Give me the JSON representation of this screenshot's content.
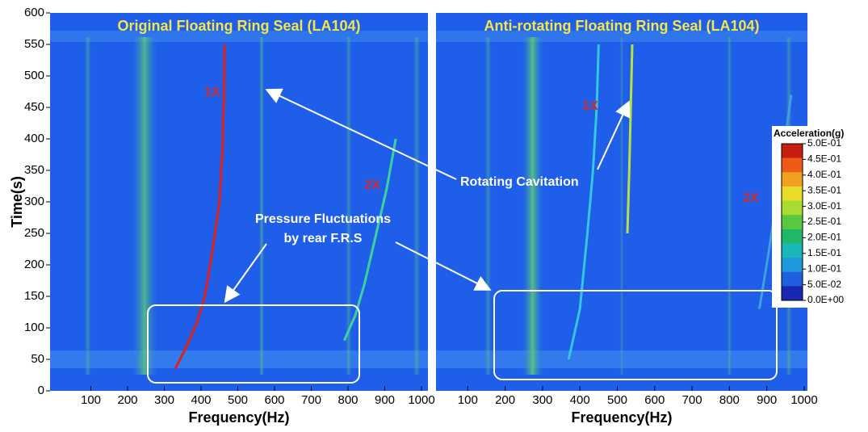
{
  "chart_data": [
    {
      "type": "spectrogram",
      "title": "Original Floating Ring Seal (LA104)",
      "x_label": "Frequency(Hz)",
      "y_label": "Time(s)",
      "xlim": [
        0,
        1000
      ],
      "xticks": [
        100,
        200,
        300,
        400,
        500,
        600,
        700,
        800,
        900,
        1000
      ],
      "ylim": [
        0,
        600
      ],
      "yticks": [
        0,
        50,
        100,
        150,
        200,
        250,
        300,
        350,
        400,
        450,
        500,
        550,
        600
      ],
      "series": [
        {
          "name": "1X",
          "color": "#e0201a",
          "x": [
            330,
            360,
            390,
            410,
            425,
            438,
            450,
            458,
            462,
            464
          ],
          "values": [
            35,
            70,
            110,
            150,
            200,
            250,
            300,
            380,
            460,
            550
          ]
        },
        {
          "name": "2X",
          "color": "#3fd0a0",
          "x": [
            790,
            820,
            845,
            865,
            885,
            905,
            930
          ],
          "values": [
            80,
            120,
            170,
            220,
            270,
            320,
            400
          ]
        }
      ],
      "annotations": [
        "Pressure Fluctuations",
        "by rear F.R.S"
      ]
    },
    {
      "type": "spectrogram",
      "title": "Anti-rotating Floating Ring Seal (LA104)",
      "x_label": "Frequency(Hz)",
      "xlim": [
        0,
        1000
      ],
      "xticks": [
        100,
        200,
        300,
        400,
        500,
        600,
        700,
        800,
        900,
        1000
      ],
      "ylim": [
        0,
        600
      ],
      "series": [
        {
          "name": "1X",
          "color": "#33c8e0",
          "x": [
            370,
            400,
            420,
            435,
            445,
            450
          ],
          "values": [
            50,
            130,
            250,
            350,
            450,
            550
          ]
        },
        {
          "name": "1X",
          "color": "#b8e040",
          "x": [
            527,
            532,
            536,
            540
          ],
          "values": [
            250,
            350,
            450,
            550
          ]
        },
        {
          "name": "2X",
          "color": "#3fa0e0",
          "x": [
            880,
            905,
            925,
            945,
            965
          ],
          "values": [
            130,
            220,
            300,
            380,
            470
          ]
        }
      ],
      "annotations": [
        "Rotating Cavitation"
      ],
      "colorbar": {
        "title": "Acceleration(g)",
        "ticks": [
          {
            "value": 0.5,
            "label": "5.0E-01"
          },
          {
            "value": 0.45,
            "label": "4.5E-01"
          },
          {
            "value": 0.4,
            "label": "4.0E-01"
          },
          {
            "value": 0.35,
            "label": "3.5E-01"
          },
          {
            "value": 0.3,
            "label": "3.0E-01"
          },
          {
            "value": 0.25,
            "label": "2.5E-01"
          },
          {
            "value": 0.2,
            "label": "2.0E-01"
          },
          {
            "value": 0.15,
            "label": "1.5E-01"
          },
          {
            "value": 0.1,
            "label": "1.0E-01"
          },
          {
            "value": 0.05,
            "label": "5.0E-02"
          },
          {
            "value": 0,
            "label": "0.0E+00"
          }
        ],
        "colors": [
          "#c81e10",
          "#ee5a18",
          "#f2a020",
          "#e8dc28",
          "#a8dc30",
          "#58c840",
          "#20b868",
          "#18b8b8",
          "#2098e0",
          "#2060e0",
          "#1828b0"
        ]
      }
    }
  ]
}
